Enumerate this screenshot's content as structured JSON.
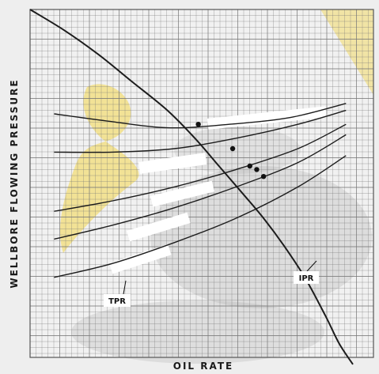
{
  "chart_data": {
    "type": "line",
    "title": "",
    "xlabel": "OIL RATE",
    "ylabel": "WELLBORE FLOWING PRESSURE",
    "xlim": [
      0,
      100
    ],
    "ylim": [
      0,
      100
    ],
    "grid": true,
    "legend": "none",
    "ipr": {
      "label": "IPR",
      "x": [
        0,
        10,
        20,
        30,
        40,
        48,
        55,
        62,
        68,
        74,
        80,
        86,
        90,
        94
      ],
      "y": [
        100,
        94,
        87,
        79,
        71,
        63,
        55,
        47,
        40,
        32,
        23,
        12,
        4,
        -2
      ]
    },
    "tpr": {
      "label": "TPR",
      "series": [
        {
          "x": [
            7,
            22,
            40,
            58,
            76,
            92
          ],
          "y": [
            70,
            68,
            66,
            67,
            69,
            73
          ]
        },
        {
          "x": [
            7,
            24,
            42,
            60,
            78,
            92
          ],
          "y": [
            59,
            59,
            60,
            63,
            67,
            71
          ]
        },
        {
          "x": [
            7,
            24,
            42,
            60,
            78,
            92
          ],
          "y": [
            42,
            45,
            49,
            54,
            60,
            67
          ]
        },
        {
          "x": [
            7,
            24,
            42,
            60,
            78,
            92
          ],
          "y": [
            34,
            38,
            43,
            49,
            56,
            64
          ]
        },
        {
          "x": [
            7,
            24,
            42,
            60,
            78,
            92
          ],
          "y": [
            23,
            27,
            33,
            40,
            49,
            58
          ]
        }
      ]
    },
    "intersections": [
      {
        "x": 49,
        "y": 67
      },
      {
        "x": 59,
        "y": 60
      },
      {
        "x": 64,
        "y": 55
      },
      {
        "x": 66,
        "y": 54
      },
      {
        "x": 68,
        "y": 52
      }
    ],
    "colors": {
      "grid": "#777777",
      "curve": "#1c1c1c",
      "background": "#eeeeee",
      "highlight": "#f2d54a",
      "highlight_stroke": "#ffffff",
      "shade": "#a8a8a8"
    }
  }
}
